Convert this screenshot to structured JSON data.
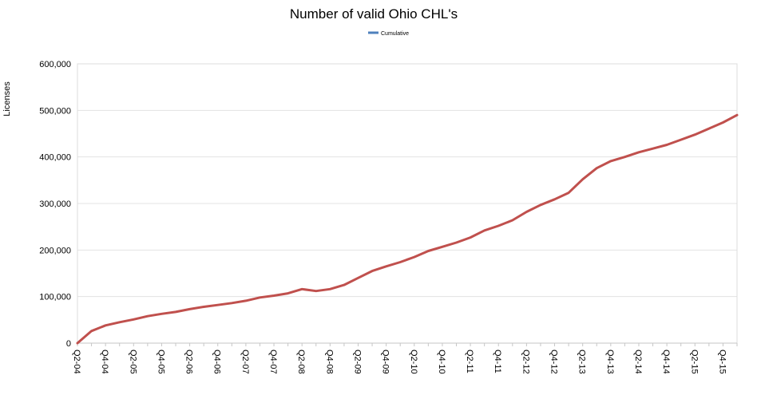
{
  "chart_data": {
    "type": "line",
    "title": "Number of valid Ohio CHL's",
    "xlabel": "",
    "ylabel": "Licenses",
    "ylim": [
      0,
      600000
    ],
    "yticks": [
      0,
      100000,
      200000,
      300000,
      400000,
      500000,
      600000
    ],
    "ytick_labels": [
      "0",
      "100,000",
      "200,000",
      "300,000",
      "400,000",
      "500,000",
      "600,000"
    ],
    "grid": true,
    "legend": "top",
    "x": [
      "Q2-04",
      "Q3-04",
      "Q4-04",
      "Q1-05",
      "Q2-05",
      "Q3-05",
      "Q4-05",
      "Q1-06",
      "Q2-06",
      "Q3-06",
      "Q4-06",
      "Q1-07",
      "Q2-07",
      "Q3-07",
      "Q4-07",
      "Q1-08",
      "Q2-08",
      "Q3-08",
      "Q4-08",
      "Q1-09",
      "Q2-09",
      "Q3-09",
      "Q4-09",
      "Q1-10",
      "Q2-10",
      "Q3-10",
      "Q4-10",
      "Q1-11",
      "Q2-11",
      "Q3-11",
      "Q4-11",
      "Q1-12",
      "Q2-12",
      "Q3-12",
      "Q4-12",
      "Q1-13",
      "Q2-13",
      "Q3-13",
      "Q4-13",
      "Q1-14",
      "Q2-14",
      "Q3-14",
      "Q4-14",
      "Q1-15",
      "Q2-15",
      "Q3-15",
      "Q4-15",
      "Q1-16"
    ],
    "xtick_labels_shown": [
      "Q2-04",
      "Q4-04",
      "Q2-05",
      "Q4-05",
      "Q2-06",
      "Q4-06",
      "Q2-07",
      "Q4-07",
      "Q2-08",
      "Q4-08",
      "Q2-09",
      "Q4-09",
      "Q2-10",
      "Q4-10",
      "Q2-11",
      "Q4-11",
      "Q2-12",
      "Q4-12",
      "Q2-13",
      "Q4-13",
      "Q2-14",
      "Q4-14",
      "Q2-15",
      "Q4-15"
    ],
    "series": [
      {
        "name": "Cumulative",
        "color": "#c0504d",
        "legend_color": "#4f81bd",
        "values": [
          0,
          26000,
          38000,
          45000,
          51000,
          58000,
          63000,
          67000,
          73000,
          78000,
          82000,
          86000,
          91000,
          98000,
          102000,
          107000,
          116000,
          112000,
          116000,
          125000,
          140000,
          155000,
          165000,
          174000,
          185000,
          198000,
          207000,
          216000,
          227000,
          242000,
          252000,
          264000,
          282000,
          297000,
          309000,
          323000,
          352000,
          376000,
          391000,
          400000,
          410000,
          418000,
          426000,
          437000,
          448000,
          461000,
          474000,
          490000
        ]
      }
    ]
  }
}
